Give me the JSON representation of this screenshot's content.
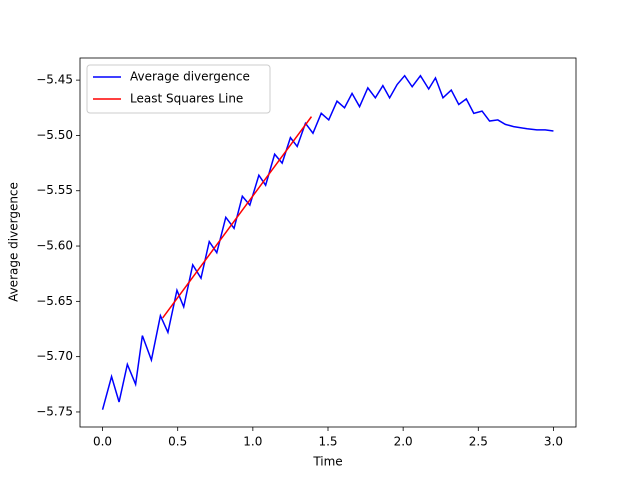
{
  "chart_data": {
    "type": "line",
    "xlabel": "Time",
    "ylabel": "Average divergence",
    "xlim": [
      -0.15,
      3.15
    ],
    "ylim": [
      -5.7636,
      -5.43
    ],
    "xticks": [
      {
        "value": 0,
        "label": "0.0"
      },
      0.5,
      {
        "value": 1,
        "label": "1.0"
      },
      1.5,
      {
        "value": 2,
        "label": "2.0"
      },
      2.5,
      {
        "value": 3,
        "label": "3.0"
      }
    ],
    "yticks": [
      {
        "value": -5.75,
        "label": "−5.75"
      },
      {
        "value": -5.7,
        "label": "−5.70"
      },
      {
        "value": -5.65,
        "label": "−5.65"
      },
      {
        "value": -5.6,
        "label": "−5.60"
      },
      {
        "value": -5.55,
        "label": "−5.55"
      },
      {
        "value": -5.5,
        "label": "−5.50"
      },
      {
        "value": -5.45,
        "label": "−5.45"
      }
    ],
    "legend": "upper left",
    "series": [
      {
        "name": "Average divergence",
        "color": "#0000ff",
        "x": [
          0,
          0.06,
          0.11,
          0.165,
          0.22,
          0.265,
          0.325,
          0.385,
          0.435,
          0.495,
          0.54,
          0.6,
          0.655,
          0.71,
          0.76,
          0.82,
          0.875,
          0.93,
          0.98,
          1.04,
          1.085,
          1.145,
          1.195,
          1.25,
          1.295,
          1.35,
          1.4,
          1.455,
          1.505,
          1.56,
          1.61,
          1.66,
          1.71,
          1.765,
          1.815,
          1.865,
          1.91,
          1.96,
          2.01,
          2.06,
          2.115,
          2.17,
          2.215,
          2.265,
          2.32,
          2.37,
          2.42,
          2.47,
          2.525,
          2.575,
          2.63,
          2.68,
          2.735,
          2.825,
          2.89,
          2.945,
          3.0
        ],
        "values": [
          -5.748,
          -5.718,
          -5.741,
          -5.707,
          -5.725,
          -5.681,
          -5.703,
          -5.663,
          -5.678,
          -5.64,
          -5.655,
          -5.617,
          -5.629,
          -5.596,
          -5.606,
          -5.574,
          -5.584,
          -5.555,
          -5.563,
          -5.536,
          -5.545,
          -5.517,
          -5.525,
          -5.502,
          -5.51,
          -5.489,
          -5.498,
          -5.48,
          -5.486,
          -5.469,
          -5.475,
          -5.462,
          -5.474,
          -5.457,
          -5.466,
          -5.455,
          -5.466,
          -5.454,
          -5.446,
          -5.456,
          -5.446,
          -5.458,
          -5.448,
          -5.466,
          -5.459,
          -5.472,
          -5.467,
          -5.48,
          -5.478,
          -5.487,
          -5.486,
          -5.49,
          -5.492,
          -5.494,
          -5.495,
          -5.495,
          -5.496
        ]
      },
      {
        "name": "Least Squares Line",
        "color": "#ff0000",
        "x": [
          0.4,
          1.39
        ],
        "values": [
          -5.665,
          -5.483
        ]
      }
    ]
  }
}
